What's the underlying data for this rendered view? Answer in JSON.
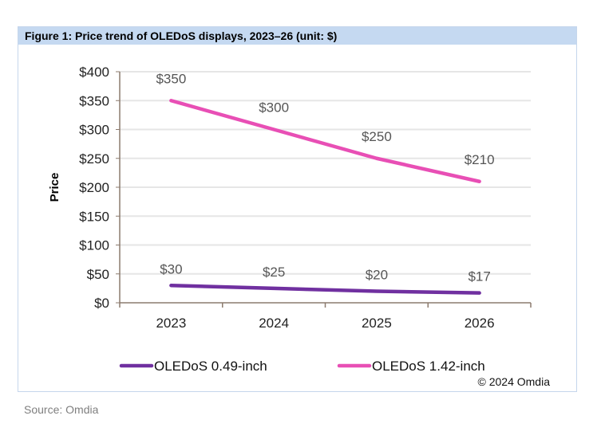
{
  "figure_title": "Figure 1: Price trend of OLEDoS displays, 2023–26 (unit: $)",
  "source": "Source: Omdia",
  "copyright": "© 2024 Omdia",
  "chart_data": {
    "type": "line",
    "title": "Figure 1: Price trend of OLEDoS displays, 2023–26 (unit: $)",
    "xlabel": "",
    "ylabel": "Price",
    "categories": [
      "2023",
      "2024",
      "2025",
      "2026"
    ],
    "ylim": [
      0,
      400
    ],
    "yticks": [
      0,
      50,
      100,
      150,
      200,
      250,
      300,
      350,
      400
    ],
    "ytick_labels": [
      "$0",
      "$50",
      "$100",
      "$150",
      "$200",
      "$250",
      "$300",
      "$350",
      "$400"
    ],
    "grid": true,
    "legend_position": "bottom",
    "series": [
      {
        "name": "OLEDoS 0.49-inch",
        "color": "#7030a0",
        "values": [
          30,
          25,
          20,
          17
        ],
        "labels": [
          "$30",
          "$25",
          "$20",
          "$17"
        ]
      },
      {
        "name": "OLEDoS 1.42-inch",
        "color": "#e84fb5",
        "values": [
          350,
          300,
          250,
          210
        ],
        "labels": [
          "$350",
          "$300",
          "$250",
          "$210"
        ]
      }
    ]
  }
}
